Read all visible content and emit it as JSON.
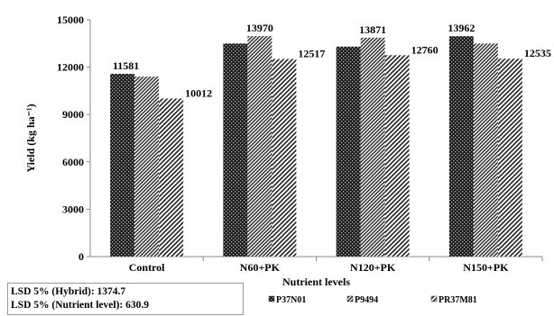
{
  "chart_data": {
    "type": "bar",
    "title": "",
    "xlabel": "Nutrient levels",
    "ylabel": "Yield (kg ha⁻¹)",
    "ylim": [
      0,
      15000
    ],
    "yticks": [
      "0",
      "3000",
      "6000",
      "9000",
      "12000",
      "15000"
    ],
    "categories": [
      "Control",
      "N60+PK",
      "N120+PK",
      "N150+PK"
    ],
    "series": [
      {
        "name": "P37N01",
        "values": [
          11581,
          13500,
          13300,
          13962
        ]
      },
      {
        "name": "P9494",
        "values": [
          11400,
          13970,
          13871,
          13500
        ]
      },
      {
        "name": "PR37M81",
        "values": [
          10012,
          12517,
          12760,
          12535
        ]
      }
    ],
    "data_labels": [
      {
        "category": 0,
        "series": 0,
        "text": "11581"
      },
      {
        "category": 0,
        "series": 2,
        "text": "10012"
      },
      {
        "category": 1,
        "series": 1,
        "text": "13970"
      },
      {
        "category": 1,
        "series": 2,
        "text": "12517"
      },
      {
        "category": 2,
        "series": 1,
        "text": "13871"
      },
      {
        "category": 2,
        "series": 2,
        "text": "12760"
      },
      {
        "category": 3,
        "series": 0,
        "text": "13962"
      },
      {
        "category": 3,
        "series": 2,
        "text": "12535"
      }
    ],
    "legend": [
      "P37N01",
      "P9494",
      "PR37M81"
    ],
    "legend_position": "bottom",
    "grid": false
  },
  "lsd": {
    "hybrid": "LSD 5% (Hybrid): 1374.7",
    "nutrient": "LSD 5% (Nutrient level): 630.9"
  }
}
